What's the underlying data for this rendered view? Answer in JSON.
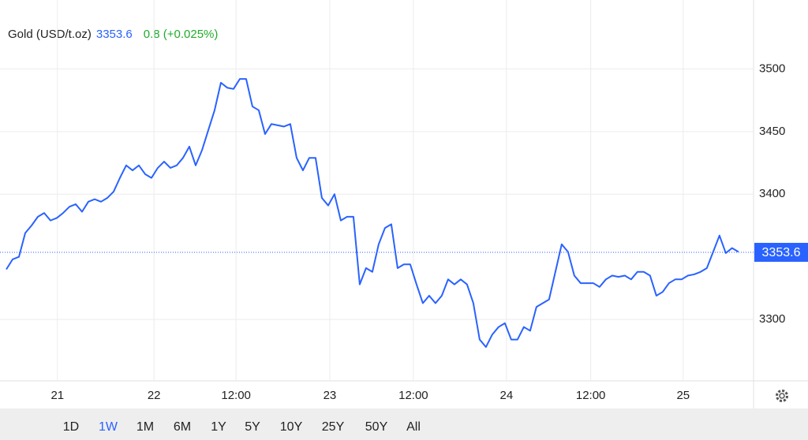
{
  "chart_data": {
    "type": "line",
    "title": "Gold (USD/t.oz)",
    "last": 3353.6,
    "change": "0.8 (+0.025%)",
    "ranges": [
      "1D",
      "1W",
      "1M",
      "6M",
      "1Y",
      "5Y",
      "10Y",
      "25Y",
      "50Y",
      "All"
    ],
    "active_range": "1W",
    "series": [
      {
        "name": "Gold",
        "color": "#2962ff",
        "values": [
          3340,
          3348,
          3350,
          3369,
          3375,
          3382,
          3385,
          3379,
          3381,
          3385,
          3390,
          3392,
          3386,
          3394,
          3396,
          3394,
          3397,
          3402,
          3413,
          3423,
          3419,
          3423,
          3416,
          3413,
          3421,
          3426,
          3421,
          3423,
          3429,
          3438,
          3423,
          3435,
          3451,
          3467,
          3489,
          3485,
          3484,
          3492,
          3492,
          3470,
          3467,
          3448,
          3456,
          3455,
          3454,
          3456,
          3429,
          3419,
          3429,
          3429,
          3397,
          3391,
          3400,
          3379,
          3382,
          3382,
          3328,
          3341,
          3338,
          3360,
          3373,
          3376,
          3341,
          3344,
          3344,
          3328,
          3313,
          3319,
          3313,
          3319,
          3332,
          3328,
          3332,
          3328,
          3313,
          3284,
          3278,
          3288,
          3294,
          3297,
          3284,
          3284,
          3294,
          3291,
          3310,
          3313,
          3316,
          3338,
          3360,
          3354,
          3335,
          3329,
          3329,
          3329,
          3326,
          3332,
          3335,
          3334,
          3335,
          3332,
          3338,
          3338,
          3335,
          3319,
          3322,
          3329,
          3332,
          3332,
          3335,
          3336,
          3338,
          3341,
          3354,
          3367,
          3353,
          3357,
          3354
        ]
      }
    ],
    "xlim": [
      0,
      118.4
    ],
    "xticks": [
      {
        "value": 8.1,
        "label": "21"
      },
      {
        "value": 23.4,
        "label": "22"
      },
      {
        "value": 36.4,
        "label": "12:00"
      },
      {
        "value": 51.25,
        "label": "23"
      },
      {
        "value": 64.5,
        "label": "12:00"
      },
      {
        "value": 79.25,
        "label": "24"
      },
      {
        "value": 92.6,
        "label": "12:00"
      },
      {
        "value": 107.25,
        "label": "25"
      }
    ],
    "ylim": [
      3251,
      3555
    ],
    "yticks": [
      3300,
      3400,
      3450,
      3500
    ],
    "grid": true
  }
}
